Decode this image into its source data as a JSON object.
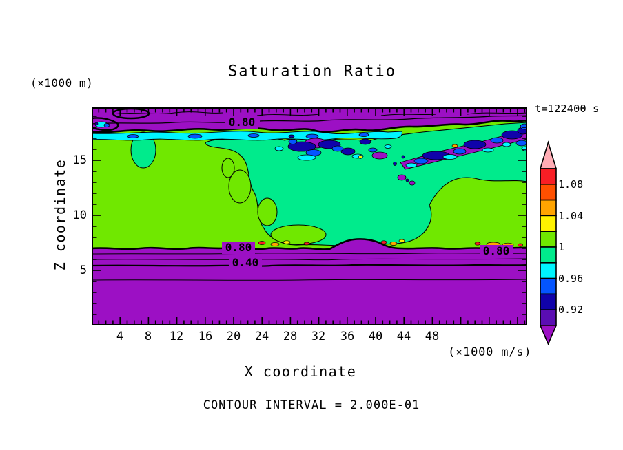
{
  "title": "Saturation Ratio",
  "annotations": {
    "y_unit": "(×1000 m)",
    "time": "t=122400 s",
    "x_unit": "(×1000 m/s)",
    "contour_interval_caption": "CONTOUR INTERVAL = 2.000E-01"
  },
  "x_axis": {
    "label": "X coordinate",
    "ticks": [
      "4",
      "8",
      "12",
      "16",
      "20",
      "24",
      "28",
      "32",
      "36",
      "40",
      "44",
      "48"
    ]
  },
  "y_axis": {
    "label": "Z coordinate",
    "ticks": [
      "15",
      "10",
      "5"
    ]
  },
  "colorbar": {
    "labels": [
      "1.08",
      "1.04",
      "1",
      "0.96",
      "0.92"
    ],
    "colors": [
      "#FFADB5",
      "#F81E25",
      "#FF5000",
      "#FFA400",
      "#FFF200",
      "#70E800",
      "#00EB8C",
      "#00F5FF",
      "#0455FF",
      "#1002AA",
      "#5A0DB2",
      "#9C10C4"
    ]
  },
  "contour_labels": [
    "0.80",
    "0.80",
    "0.40",
    "0.80"
  ],
  "chart_data": {
    "type": "filled_contour",
    "title": "Saturation Ratio",
    "xlabel": "X coordinate",
    "xlabel_unit": "(×1000 m/s)",
    "ylabel": "Z coordinate",
    "ylabel_unit": "(×1000 m)",
    "x_ticks": [
      4,
      8,
      12,
      16,
      20,
      24,
      28,
      32,
      36,
      40,
      44,
      48
    ],
    "y_ticks": [
      5,
      10,
      15
    ],
    "x_range_approx": [
      0,
      61
    ],
    "y_range_approx": [
      0,
      19.8
    ],
    "time_annotation": "t=122400 s",
    "contour_interval": 0.2,
    "labeled_contour_values": [
      0.8,
      0.4
    ],
    "colorbar": {
      "orientation": "vertical",
      "tick_labels_top_to_bottom": [
        "1.08",
        "1.04",
        "1",
        "0.96",
        "0.92"
      ],
      "band_levels": [
        0.9,
        0.92,
        0.94,
        0.96,
        0.98,
        1.0,
        1.02,
        1.04,
        1.06,
        1.08,
        1.1
      ],
      "band_colors_top_to_bottom": [
        "#FFADB5",
        "#F81E25",
        "#FF5000",
        "#FFA400",
        "#FFF200",
        "#70E800",
        "#00EB8C",
        "#00F5FF",
        "#0455FF",
        "#1002AA",
        "#5A0DB2",
        "#9C10C4"
      ],
      "arrow_caps": true
    },
    "field_summary": {
      "background_below_0p9_color": "#9C10C4",
      "saturated_band_colors": [
        "#70E800",
        "#00EB8C"
      ],
      "description": "Saturation ratio near 1 (green bands) between z≈6.5 and z≈17.5 (×1000 m); values below 0.9 (purple) aloft and near the surface with labeled 0.80 and 0.40 contours; speckled sub-saturated (blue/cyan) patches along cloud top and a few supersaturated (yellow/orange/red) spots along the lower boundary"
    }
  }
}
